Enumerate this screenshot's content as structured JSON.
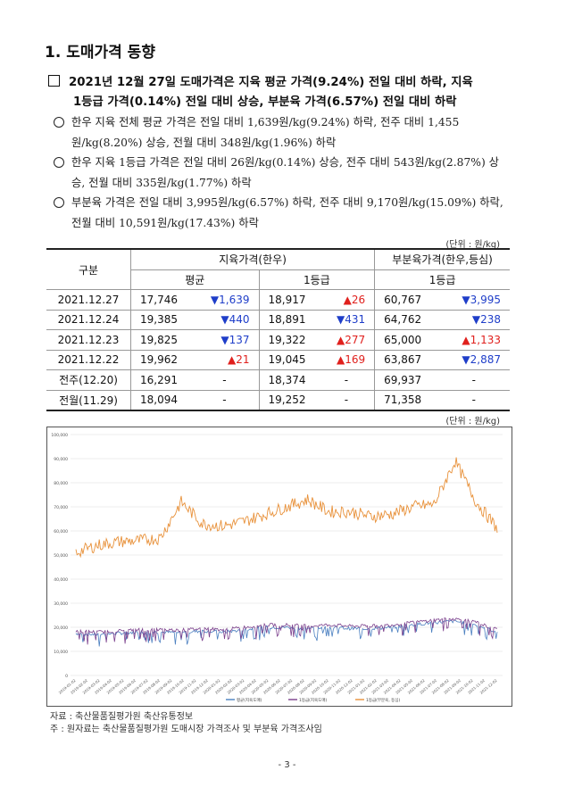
{
  "section_title": "1. 도매가격 동향",
  "headline": {
    "line1": "2021년 12월 27일 도매가격은 지육 평균 가격(9.24%) 전일 대비 하락, 지육",
    "line2": "1등급 가격(0.14%) 전일 대비 상승, 부분육 가격(6.57%) 전일 대비 하락"
  },
  "bullets": [
    "한우 지육 전체 평균 가격은 전일 대비 1,639원/kg(9.24%) 하락, 전주 대비 1,455원/kg(8.20%) 상승, 전월 대비 348원/kg(1.96%) 하락",
    "한우 지육 1등급 가격은 전일 대비 26원/kg(0.14%) 상승, 전주 대비 543원/kg(2.87%) 상승, 전월 대비 335원/kg(1.77%) 하락",
    "부분육 가격은 전일 대비 3,995원/kg(6.57%) 하락, 전주 대비 9,170원/kg(15.09%) 하락, 전월 대비 10,591원/kg(17.43%) 하락"
  ],
  "unit_label": "(단위 : 원/kg)",
  "table": {
    "col_category": "구분",
    "group_carcass": "지육가격(한우)",
    "group_cut": "부분육가격(한우,등심)",
    "sub_avg": "평균",
    "sub_grade1": "1등급",
    "sub_cut_grade1": "1등급",
    "rows": [
      {
        "label": "2021.12.27",
        "avg": "17,746",
        "avg_chg": "▼1,639",
        "avg_dir": "down",
        "g1": "18,917",
        "g1_chg": "▲26",
        "g1_dir": "up",
        "cut": "60,767",
        "cut_chg": "▼3,995",
        "cut_dir": "down"
      },
      {
        "label": "2021.12.24",
        "avg": "19,385",
        "avg_chg": "▼440",
        "avg_dir": "down",
        "g1": "18,891",
        "g1_chg": "▼431",
        "g1_dir": "down",
        "cut": "64,762",
        "cut_chg": "▼238",
        "cut_dir": "down"
      },
      {
        "label": "2021.12.23",
        "avg": "19,825",
        "avg_chg": "▼137",
        "avg_dir": "down",
        "g1": "19,322",
        "g1_chg": "▲277",
        "g1_dir": "up",
        "cut": "65,000",
        "cut_chg": "▲1,133",
        "cut_dir": "up"
      },
      {
        "label": "2021.12.22",
        "avg": "19,962",
        "avg_chg": "▲21",
        "avg_dir": "up",
        "g1": "19,045",
        "g1_chg": "▲169",
        "g1_dir": "up",
        "cut": "63,867",
        "cut_chg": "▼2,887",
        "cut_dir": "down"
      },
      {
        "label": "전주(12.20)",
        "avg": "16,291",
        "avg_chg": "-",
        "avg_dir": "none",
        "g1": "18,374",
        "g1_chg": "-",
        "g1_dir": "none",
        "cut": "69,937",
        "cut_chg": "-",
        "cut_dir": "none"
      },
      {
        "label": "전월(11.29)",
        "avg": "18,094",
        "avg_chg": "-",
        "avg_dir": "none",
        "g1": "19,252",
        "g1_chg": "-",
        "g1_dir": "none",
        "cut": "71,358",
        "cut_chg": "-",
        "cut_dir": "none"
      }
    ]
  },
  "chart": {
    "y_ticks": [
      "0",
      "10,000",
      "20,000",
      "30,000",
      "40,000",
      "50,000",
      "60,000",
      "70,000",
      "80,000",
      "90,000",
      "100,000"
    ],
    "y_min": 0,
    "y_max": 100000,
    "x_ticks": [
      "2019-01-02",
      "2019-02-02",
      "2019-03-02",
      "2019-04-02",
      "2019-05-02",
      "2019-06-02",
      "2019-07-02",
      "2019-08-02",
      "2019-09-02",
      "2019-10-02",
      "2019-11-02",
      "2019-12-02",
      "2020-01-02",
      "2020-02-02",
      "2020-03-02",
      "2020-04-02",
      "2020-05-02",
      "2020-06-02",
      "2020-07-02",
      "2020-08-02",
      "2020-09-02",
      "2020-10-02",
      "2020-11-02",
      "2020-12-02",
      "2021-01-02",
      "2021-02-02",
      "2021-03-02",
      "2021-04-02",
      "2021-05-02",
      "2021-06-02",
      "2021-07-02",
      "2021-08-02",
      "2021-09-02",
      "2021-10-02",
      "2021-11-02",
      "2021-12-02"
    ],
    "legend": [
      "평균(지육도매)",
      "1등급(지육도매)",
      "1등급(부분육, 등심)"
    ],
    "colors": {
      "avg": "#4a7fc0",
      "grade1": "#7b3f8c",
      "cut": "#e8913a"
    }
  },
  "chart_data": {
    "type": "line",
    "x": [
      "2019-01",
      "2019-03",
      "2019-05",
      "2019-07",
      "2019-09",
      "2019-10",
      "2019-12",
      "2020-02",
      "2020-04",
      "2020-06",
      "2020-08",
      "2020-09",
      "2020-11",
      "2021-01",
      "2021-03",
      "2021-05",
      "2021-07",
      "2021-09",
      "2021-10",
      "2021-11",
      "2021-12"
    ],
    "series": [
      {
        "name": "평균(지육도매)",
        "values": [
          17500,
          17000,
          17500,
          18000,
          18000,
          17800,
          18500,
          18000,
          19000,
          20000,
          20000,
          19500,
          20000,
          19500,
          19500,
          20000,
          21000,
          22000,
          22500,
          21000,
          18000
        ]
      },
      {
        "name": "1등급(지육도매)",
        "values": [
          18500,
          18000,
          18500,
          19000,
          19000,
          18800,
          19500,
          19000,
          20000,
          21000,
          21000,
          20500,
          21000,
          20500,
          20500,
          21000,
          22000,
          23000,
          23500,
          22000,
          19000
        ]
      },
      {
        "name": "1등급(부분육, 등심)",
        "values": [
          51000,
          54000,
          55500,
          56000,
          57000,
          72000,
          63000,
          62000,
          64000,
          67000,
          70000,
          73000,
          68000,
          68000,
          66000,
          67000,
          70000,
          71000,
          89000,
          72000,
          61000
        ]
      }
    ],
    "ylim": [
      0,
      100000
    ]
  },
  "source": "자료 : 축산물품질평가원 축산유통정보",
  "footnote": "주 : 원자료는 축산물품질평가원 도매시장 가격조사 및 부분육 가격조사임",
  "page_number": "- 3 -"
}
